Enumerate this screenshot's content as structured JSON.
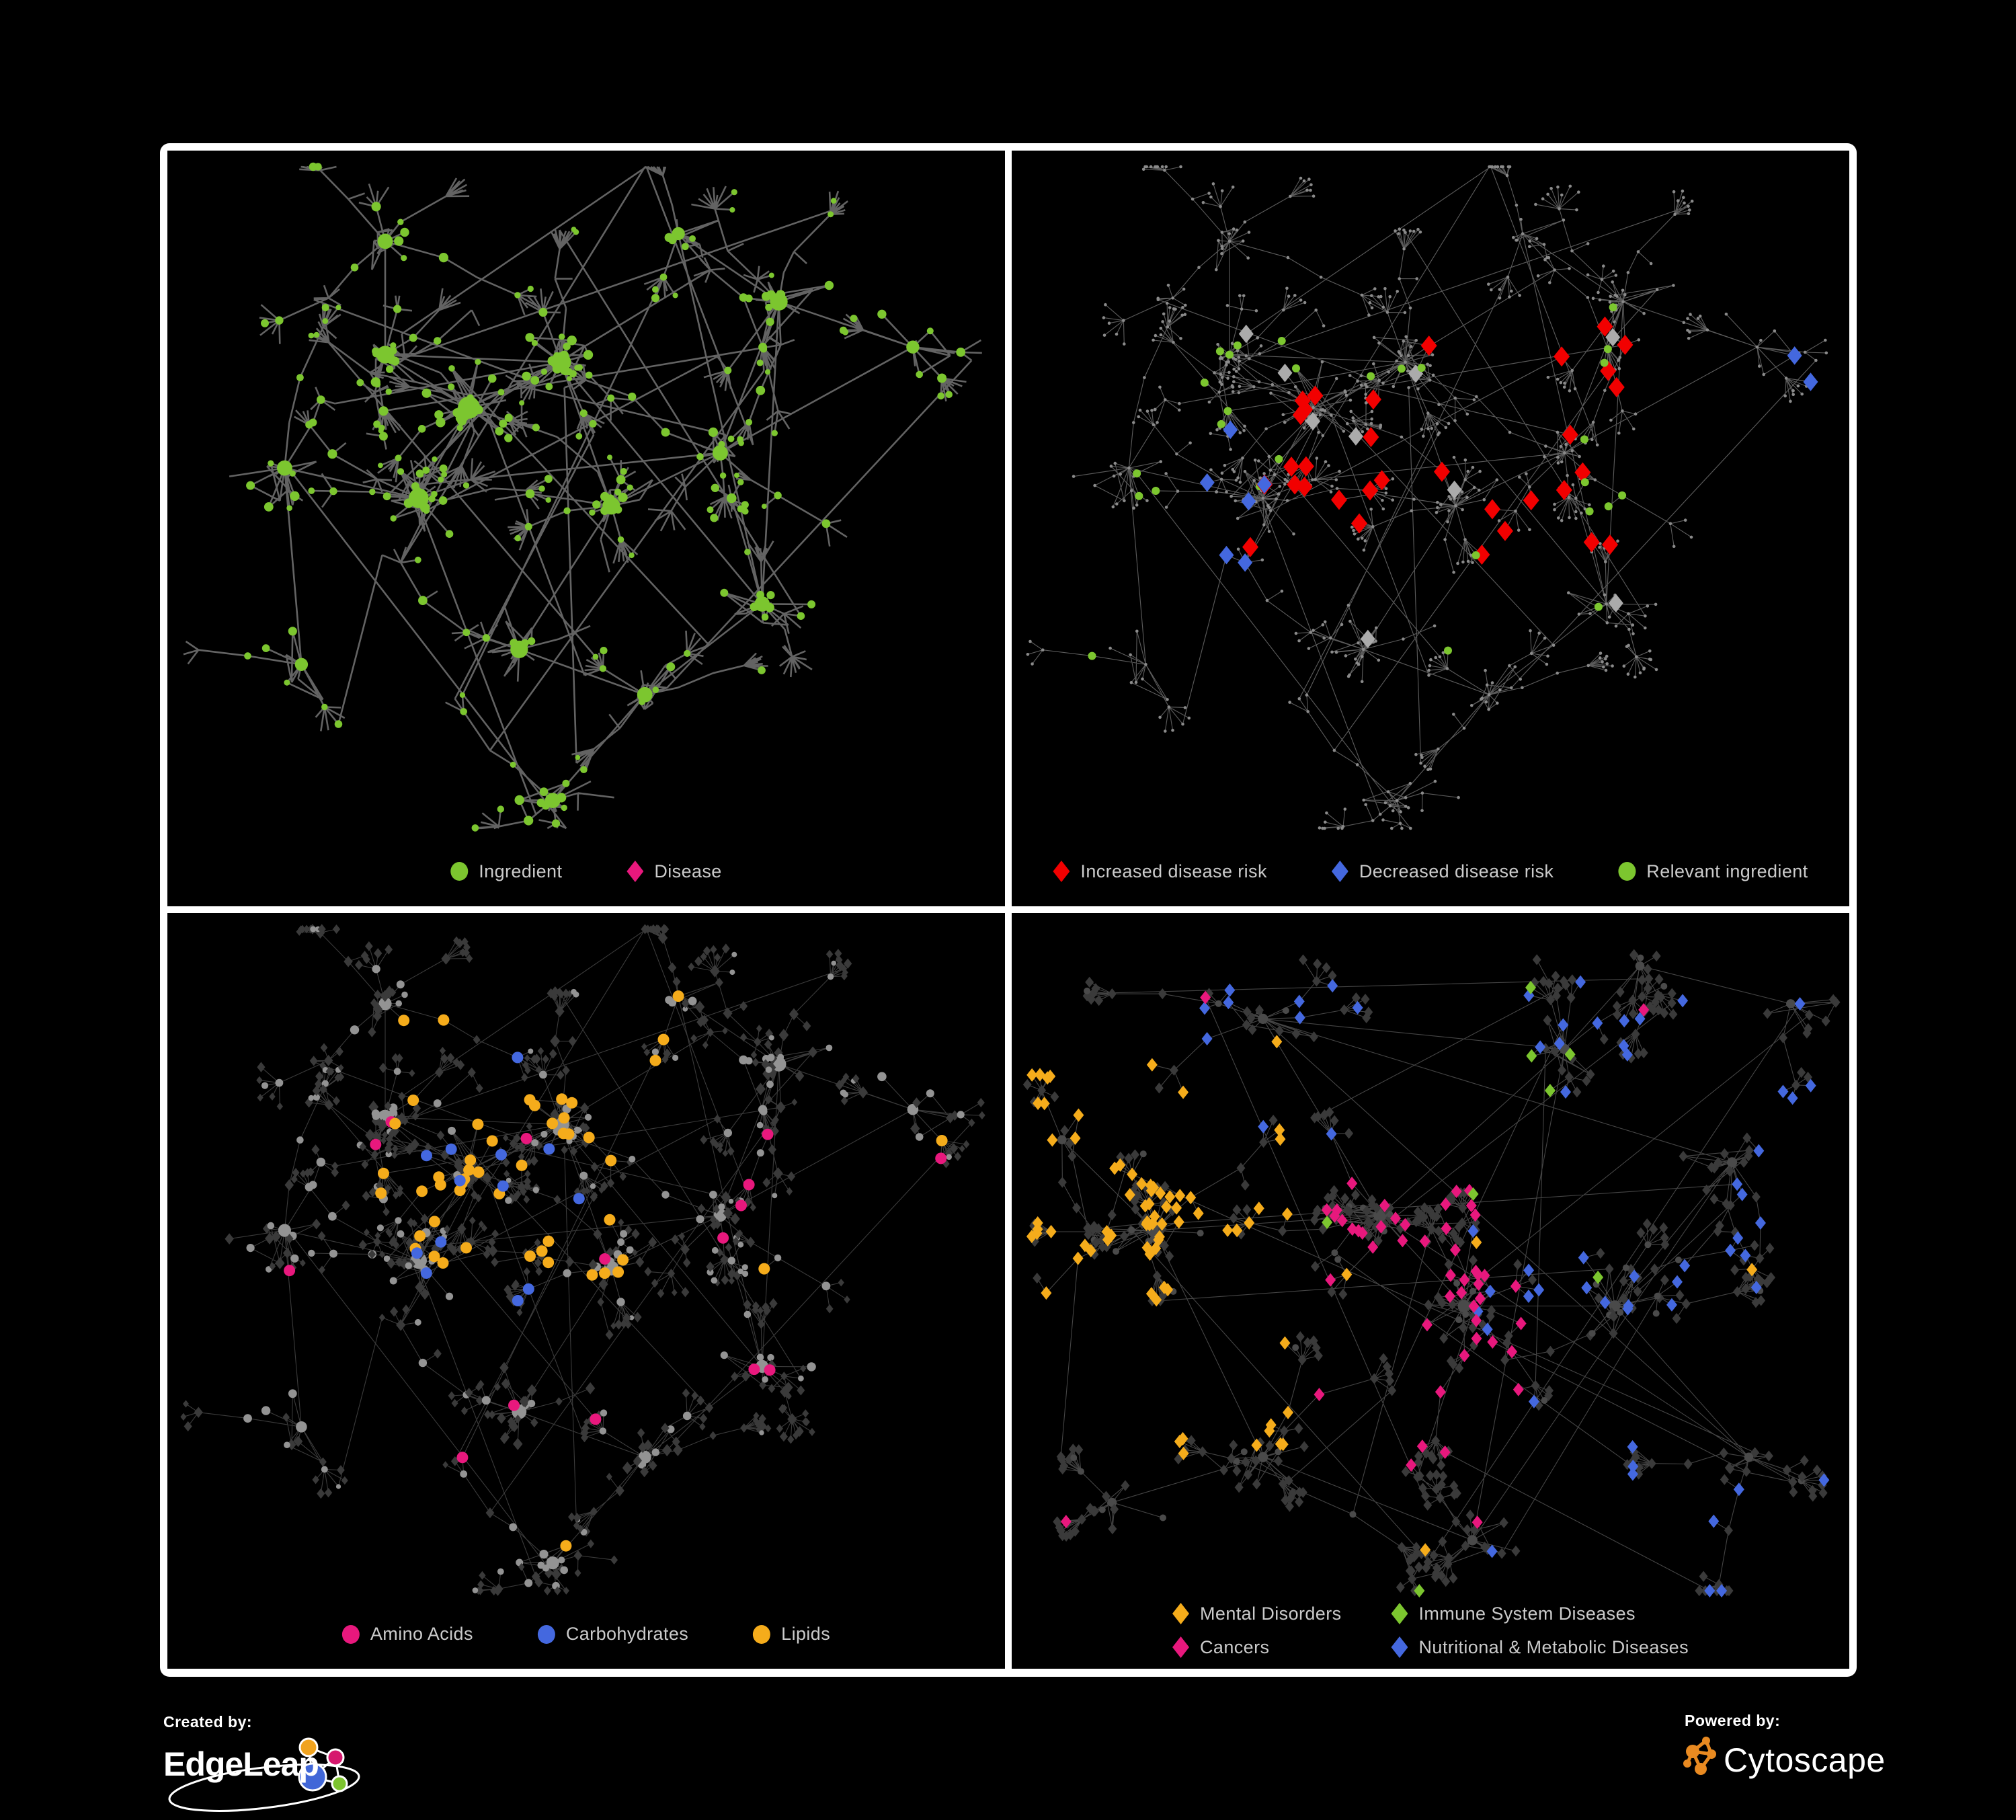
{
  "colors": {
    "green": "#7CC62F",
    "pink": "#E8187D",
    "red": "#F20000",
    "blue": "#4468DF",
    "orange": "#F5AC1B",
    "grayCircle": "#939393",
    "darkDiamond": "#3A3A3A",
    "darkCircle": "#4A4A4A",
    "tinyDot": "#8A8A8A",
    "grayDiamondHighlight": "#ABABAB",
    "edgeBold": "#6A6A6A",
    "edgeThin": "#646464",
    "edgeFaint": "#9A9A9A",
    "legendText": "#CBCBCB",
    "panelFrame": "#FFFFFF",
    "background": "#000000",
    "cytoscapeOrange": "#E98A21",
    "edgeleapBlue": "#4167D8",
    "edgeleapOrange": "#F0A31F",
    "edgeleapPink": "#D6186E",
    "edgeleapGreen": "#7CC32E"
  },
  "panels": [
    {
      "id": "ingredient-disease",
      "legend_layout": "row",
      "legend": [
        {
          "shape": "circle",
          "color": "green",
          "label": "Ingredient"
        },
        {
          "shape": "diamond",
          "color": "pink",
          "label": "Disease"
        }
      ]
    },
    {
      "id": "disease-risk",
      "legend_layout": "row",
      "legend": [
        {
          "shape": "diamond",
          "color": "red",
          "label": "Increased disease risk"
        },
        {
          "shape": "diamond",
          "color": "blue",
          "label": "Decreased disease risk"
        },
        {
          "shape": "circle",
          "color": "green",
          "label": "Relevant ingredient"
        }
      ]
    },
    {
      "id": "chemical-classes",
      "legend_layout": "row",
      "legend": [
        {
          "shape": "circle",
          "color": "pink",
          "label": "Amino Acids"
        },
        {
          "shape": "circle",
          "color": "blue",
          "label": "Carbohydrates"
        },
        {
          "shape": "circle",
          "color": "orange",
          "label": "Lipids"
        }
      ]
    },
    {
      "id": "disease-categories",
      "legend_layout": "grid2",
      "legend": [
        {
          "shape": "diamond",
          "color": "orange",
          "label": "Mental Disorders"
        },
        {
          "shape": "diamond",
          "color": "green",
          "label": "Immune System Diseases"
        },
        {
          "shape": "diamond",
          "color": "pink",
          "label": "Cancers"
        },
        {
          "shape": "diamond",
          "color": "blue",
          "label": "Nutritional & Metabolic Diseases"
        }
      ]
    }
  ],
  "branding": {
    "created_by_label": "Created by:",
    "created_by_name": "EdgeLeap",
    "powered_by_label": "Powered by:",
    "powered_by_name": "Cytoscape"
  }
}
